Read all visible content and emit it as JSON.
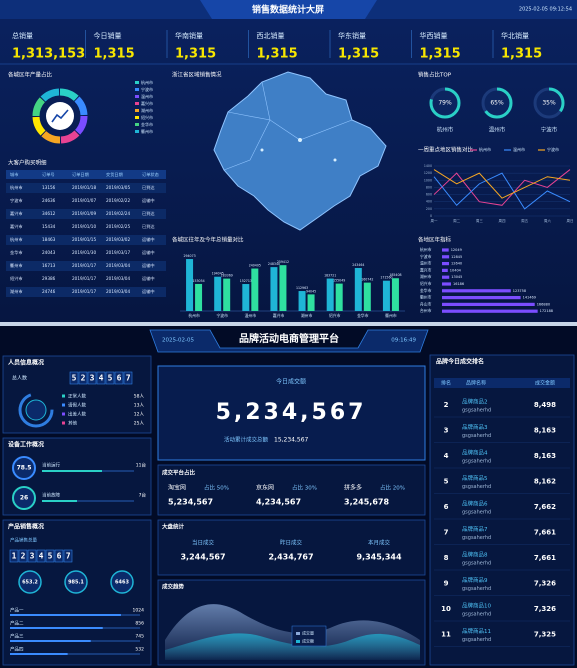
{
  "top": {
    "title": "销售数据统计大屏",
    "time": "2025-02-05 09:12:54",
    "kpis": [
      {
        "label": "总销量",
        "value": "1,313,153"
      },
      {
        "label": "今日销量",
        "value": "1,315"
      },
      {
        "label": "华南销量",
        "value": "1,315"
      },
      {
        "label": "西北销量",
        "value": "1,315"
      },
      {
        "label": "华东销量",
        "value": "1,315"
      },
      {
        "label": "华西销量",
        "value": "1,315"
      },
      {
        "label": "华北销量",
        "value": "1,315"
      }
    ],
    "region_share": {
      "title": "各城区年产量占比",
      "legend": [
        "杭州市",
        "宁波市",
        "温州市",
        "嘉兴市",
        "湖州市",
        "绍兴市",
        "金华市",
        "衢州市"
      ]
    },
    "orders": {
      "title": "大客户购买明细",
      "columns": [
        "城市",
        "订单号",
        "订单日期",
        "交货日期",
        "订单状态"
      ],
      "rows": [
        [
          "杭州市",
          "13156",
          "2019/01/18",
          "2019/03/05",
          "已到达"
        ],
        [
          "宁波市",
          "24636",
          "2019/01/07",
          "2019/02/22",
          "运输中"
        ],
        [
          "嘉兴市",
          "34612",
          "2019/01/09",
          "2019/02/24",
          "已到达"
        ],
        [
          "嘉兴市",
          "15434",
          "2019/01/10",
          "2019/02/25",
          "已到达"
        ],
        [
          "杭州市",
          "18463",
          "2019/01/15",
          "2019/03/02",
          "运输中"
        ],
        [
          "金华市",
          "24043",
          "2019/01/30",
          "2019/03/17",
          "运输中"
        ],
        [
          "衢州市",
          "16713",
          "2019/01/17",
          "2019/03/04",
          "运输中"
        ],
        [
          "绍兴市",
          "29386",
          "2019/01/17",
          "2019/03/04",
          "运输中"
        ],
        [
          "湖州市",
          "24746",
          "2019/01/17",
          "2019/03/04",
          "运输中"
        ]
      ]
    },
    "map": {
      "title": "浙江省区域销售情况"
    },
    "top_share": {
      "title": "销售占比TOP",
      "names": [
        "杭州市",
        "温州市",
        "宁波市"
      ],
      "values": [
        79,
        65,
        35
      ],
      "value_labels": [
        "79%",
        "65%",
        "35%"
      ],
      "color": "#2ad0c6"
    },
    "weekly": {
      "title": "一周重点地区销售对比",
      "categories": [
        "周一",
        "周二",
        "周三",
        "周四",
        "周五",
        "周六",
        "周日"
      ],
      "series": [
        {
          "name": "杭州市",
          "color": "#e84393",
          "values": [
            600,
            1200,
            400,
            300,
            1000,
            800,
            1300
          ]
        },
        {
          "name": "温州市",
          "color": "#3a8bff",
          "values": [
            1100,
            300,
            900,
            1200,
            200,
            700,
            400
          ]
        },
        {
          "name": "宁波市",
          "color": "#f5a623",
          "values": [
            1300,
            900,
            1200,
            500,
            800,
            1100,
            1000
          ]
        }
      ],
      "ylim": [
        0,
        1400
      ],
      "yticks": [
        0,
        200,
        400,
        600,
        800,
        1000,
        1200,
        1400
      ],
      "grid": true
    },
    "yearly": {
      "title": "各城区往年及今年总销量对比",
      "categories": [
        "杭州市",
        "宁波市",
        "温州市",
        "嘉兴市",
        "湖州市",
        "绍兴市",
        "金华市",
        "衢州市"
      ],
      "series": [
        {
          "color": "#1fb5d6",
          "values": [
            294073,
            194045,
            152713,
            248340,
            112963,
            183721,
            243464,
            171560
          ]
        },
        {
          "color": "#2fe0a0",
          "values": [
            153054,
            183369,
            240405,
            259412,
            94045,
            155049,
            160742,
            185408
          ]
        }
      ],
      "ylim": [
        0,
        300000
      ]
    },
    "targets": {
      "title": "各地区年指标",
      "categories": [
        "杭州市",
        "宁波市",
        "温州市",
        "嘉兴市",
        "湖州市",
        "绍兴市",
        "金华市",
        "衢州市",
        "舟山市",
        "台州市"
      ],
      "values": [
        12049,
        12845,
        12640,
        10404,
        13045,
        16186,
        123758,
        141469,
        166880,
        172188
      ],
      "color": "#7b4dff",
      "xlim": [
        0,
        180000
      ]
    }
  },
  "bottom": {
    "title": "品牌活动电商管理平台",
    "date": "2025-02-05",
    "time": "09:16:49",
    "people": {
      "title": "人员信息概况",
      "total_label": "总人数",
      "digits": "5234567",
      "rows": [
        {
          "label": "正常人数",
          "value": "58人"
        },
        {
          "label": "请假人数",
          "value": "13人"
        },
        {
          "label": "出差人数",
          "value": "12人"
        },
        {
          "label": "其他",
          "value": "25人"
        }
      ]
    },
    "devices": {
      "title": "设备工作概况",
      "items": [
        {
          "ring": "78.5",
          "label": "当前运行",
          "value": "11台"
        },
        {
          "ring": "26",
          "label": "当前故障",
          "value": "7台"
        }
      ]
    },
    "products": {
      "title": "产品销售概况",
      "subtitle": "产品销售总量",
      "digits": "1234567",
      "stats": [
        "653.2",
        "985.1",
        "6463"
      ],
      "rows": [
        "产品一",
        "产品二",
        "产品三",
        "产品四"
      ],
      "values": [
        1024,
        856,
        745,
        532
      ],
      "xlim": [
        0,
        1200
      ]
    },
    "today": {
      "label": "今日成交额",
      "value": "5,234,567",
      "total_label": "活动累计成交总额",
      "total": "15,234,567"
    },
    "platforms": {
      "title": "成交平台占比",
      "items": [
        {
          "name": "淘宝网",
          "share": "占比 50%",
          "value": "5,234,567"
        },
        {
          "name": "京东网",
          "share": "占比 30%",
          "value": "4,234,567"
        },
        {
          "name": "拼多多",
          "share": "占比 20%",
          "value": "3,245,678"
        }
      ]
    },
    "summary": {
      "title": "大盘统计",
      "items": [
        {
          "label": "当日成交",
          "value": "3,244,567"
        },
        {
          "label": "昨日成交",
          "value": "2,434,767"
        },
        {
          "label": "本月成交",
          "value": "9,345,344"
        }
      ]
    },
    "trend": {
      "title": "成交趋势",
      "legend": [
        "成交量",
        "成交额"
      ]
    },
    "ranking": {
      "title": "品牌今日成交排名",
      "columns": [
        "排名",
        "品牌名称",
        "成交金额"
      ],
      "rows": [
        {
          "rank": "2",
          "name": "品牌商品2",
          "code": "gsgsaherhd",
          "value": "8,498"
        },
        {
          "rank": "3",
          "name": "品牌商品3",
          "code": "gsgsaherhd",
          "value": "8,163"
        },
        {
          "rank": "4",
          "name": "品牌商品4",
          "code": "gsgsaherhd",
          "value": "8,163"
        },
        {
          "rank": "5",
          "name": "品牌商品5",
          "code": "gsgsaherhd",
          "value": "8,162"
        },
        {
          "rank": "6",
          "name": "品牌商品6",
          "code": "gsgsaherhd",
          "value": "7,662"
        },
        {
          "rank": "7",
          "name": "品牌商品7",
          "code": "gsgsaherhd",
          "value": "7,661"
        },
        {
          "rank": "8",
          "name": "品牌商品8",
          "code": "gsgsaherhd",
          "value": "7,661"
        },
        {
          "rank": "9",
          "name": "品牌商品9",
          "code": "gsgsaherhd",
          "value": "7,326"
        },
        {
          "rank": "10",
          "name": "品牌商品10",
          "code": "gsgsaherhd",
          "value": "7,326"
        },
        {
          "rank": "11",
          "name": "品牌商品11",
          "code": "gsgsaherhd",
          "value": "7,325"
        }
      ]
    }
  }
}
